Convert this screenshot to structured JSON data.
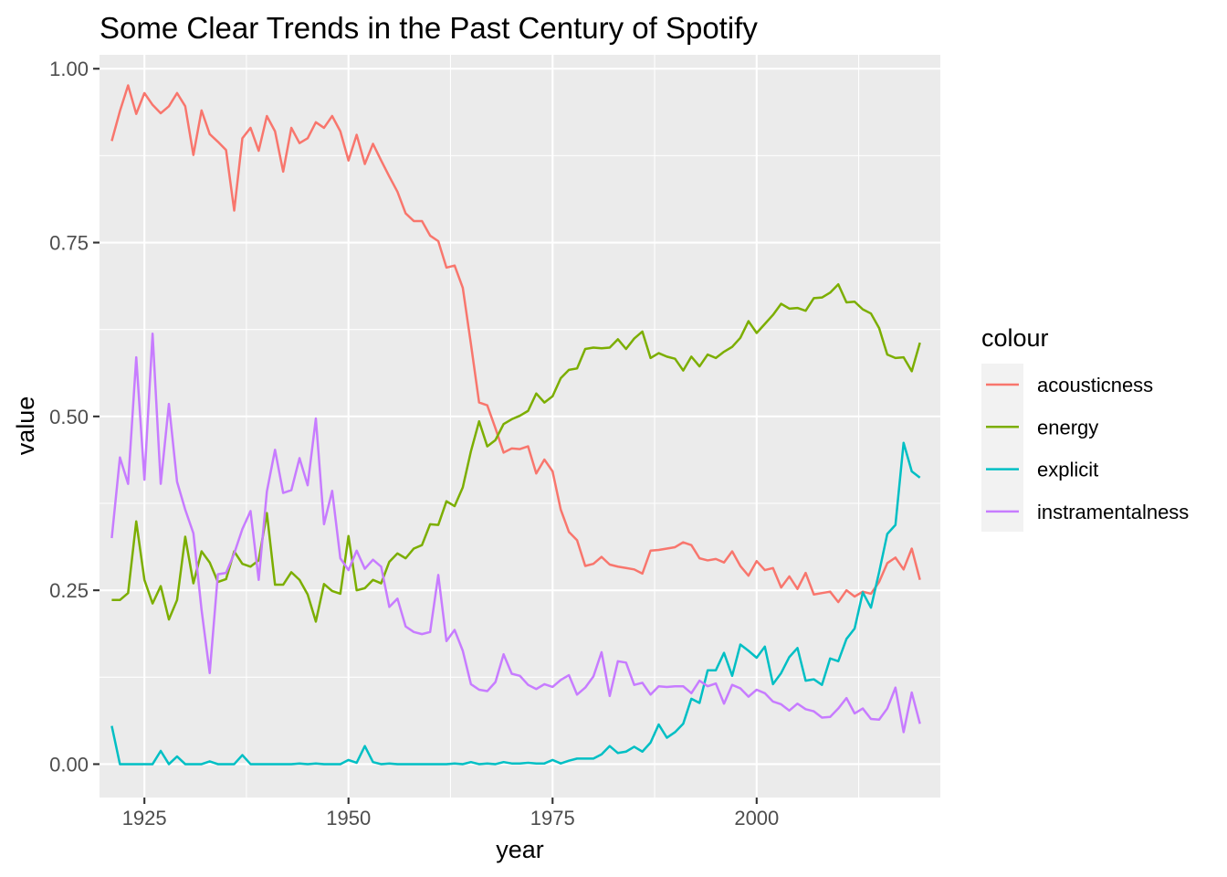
{
  "chart_data": {
    "type": "line",
    "title": "Some Clear Trends in the Past Century of Spotify",
    "xlabel": "year",
    "ylabel": "value",
    "xlim": [
      1919.5,
      2022.5
    ],
    "ylim": [
      -0.048,
      1.02
    ],
    "x_ticks": [
      1925,
      1950,
      1975,
      2000
    ],
    "x_tick_labels": [
      "1925",
      "1950",
      "1975",
      "2000"
    ],
    "y_ticks": [
      0,
      0.25,
      0.5,
      0.75,
      1.0
    ],
    "y_tick_labels": [
      "0.00",
      "0.25",
      "0.50",
      "0.75",
      "1.00"
    ],
    "grid": true,
    "legend": {
      "title": "colour",
      "position": "right",
      "entries": [
        "acousticness",
        "energy",
        "explicit",
        "instramentalness"
      ]
    },
    "x": [
      1921,
      1922,
      1923,
      1924,
      1925,
      1926,
      1927,
      1928,
      1929,
      1930,
      1931,
      1932,
      1933,
      1934,
      1935,
      1936,
      1937,
      1938,
      1939,
      1940,
      1941,
      1942,
      1943,
      1944,
      1945,
      1946,
      1947,
      1948,
      1949,
      1950,
      1951,
      1952,
      1953,
      1954,
      1955,
      1956,
      1957,
      1958,
      1959,
      1960,
      1961,
      1962,
      1963,
      1964,
      1965,
      1966,
      1967,
      1968,
      1969,
      1970,
      1971,
      1972,
      1973,
      1974,
      1975,
      1976,
      1977,
      1978,
      1979,
      1980,
      1981,
      1982,
      1983,
      1984,
      1985,
      1986,
      1987,
      1988,
      1989,
      1990,
      1991,
      1992,
      1993,
      1994,
      1995,
      1996,
      1997,
      1998,
      1999,
      2000,
      2001,
      2002,
      2003,
      2004,
      2005,
      2006,
      2007,
      2008,
      2009,
      2010,
      2011,
      2012,
      2013,
      2014,
      2015,
      2016,
      2017,
      2018,
      2019,
      2020
    ],
    "series": [
      {
        "name": "acousticness",
        "color": "#F8766D",
        "values": [
          0.896,
          0.939,
          0.976,
          0.935,
          0.965,
          0.948,
          0.936,
          0.946,
          0.965,
          0.946,
          0.876,
          0.94,
          0.906,
          0.895,
          0.883,
          0.796,
          0.9,
          0.915,
          0.882,
          0.932,
          0.91,
          0.852,
          0.915,
          0.893,
          0.9,
          0.923,
          0.915,
          0.932,
          0.91,
          0.868,
          0.905,
          0.863,
          0.892,
          0.868,
          0.845,
          0.823,
          0.792,
          0.781,
          0.781,
          0.76,
          0.752,
          0.714,
          0.717,
          0.685,
          0.604,
          0.52,
          0.516,
          0.483,
          0.448,
          0.454,
          0.453,
          0.457,
          0.418,
          0.438,
          0.421,
          0.366,
          0.334,
          0.322,
          0.285,
          0.288,
          0.298,
          0.287,
          0.284,
          0.282,
          0.28,
          0.274,
          0.307,
          0.308,
          0.31,
          0.312,
          0.319,
          0.315,
          0.296,
          0.293,
          0.295,
          0.29,
          0.306,
          0.285,
          0.271,
          0.292,
          0.279,
          0.282,
          0.254,
          0.27,
          0.252,
          0.275,
          0.244,
          0.246,
          0.248,
          0.233,
          0.25,
          0.241,
          0.248,
          0.245,
          0.262,
          0.289,
          0.297,
          0.28,
          0.31,
          0.265
        ]
      },
      {
        "name": "energy",
        "color": "#7CAE00",
        "values": [
          0.236,
          0.236,
          0.246,
          0.349,
          0.265,
          0.231,
          0.256,
          0.208,
          0.236,
          0.327,
          0.26,
          0.306,
          0.29,
          0.262,
          0.266,
          0.306,
          0.288,
          0.284,
          0.293,
          0.361,
          0.258,
          0.258,
          0.276,
          0.265,
          0.244,
          0.205,
          0.259,
          0.249,
          0.245,
          0.328,
          0.25,
          0.253,
          0.265,
          0.26,
          0.291,
          0.303,
          0.296,
          0.31,
          0.315,
          0.345,
          0.344,
          0.378,
          0.371,
          0.398,
          0.45,
          0.493,
          0.457,
          0.466,
          0.489,
          0.496,
          0.501,
          0.508,
          0.533,
          0.52,
          0.529,
          0.555,
          0.567,
          0.569,
          0.597,
          0.599,
          0.598,
          0.599,
          0.611,
          0.597,
          0.612,
          0.622,
          0.584,
          0.591,
          0.586,
          0.583,
          0.566,
          0.586,
          0.572,
          0.589,
          0.584,
          0.593,
          0.6,
          0.613,
          0.637,
          0.62,
          0.633,
          0.646,
          0.662,
          0.655,
          0.656,
          0.652,
          0.67,
          0.671,
          0.678,
          0.69,
          0.664,
          0.665,
          0.654,
          0.648,
          0.627,
          0.589,
          0.584,
          0.585,
          0.565,
          0.606
        ]
      },
      {
        "name": "explicit",
        "color": "#00BFC4",
        "values": [
          0.055,
          0.0,
          0.0,
          0.0,
          0.0,
          0.0,
          0.019,
          0.0,
          0.011,
          0.0,
          0.0,
          0.0,
          0.004,
          0.0,
          0.0,
          0.0,
          0.013,
          0.0,
          0.0,
          0.0,
          0.0,
          0.0,
          0.0,
          0.001,
          0.0,
          0.001,
          0.0,
          0.0,
          0.0,
          0.006,
          0.002,
          0.026,
          0.003,
          0.0,
          0.001,
          0.0,
          0.0,
          0.0,
          0.0,
          0.0,
          0.0,
          0.0,
          0.001,
          0.0,
          0.003,
          0.0,
          0.001,
          0.0,
          0.003,
          0.001,
          0.001,
          0.002,
          0.001,
          0.001,
          0.006,
          0.001,
          0.005,
          0.008,
          0.008,
          0.008,
          0.014,
          0.026,
          0.016,
          0.018,
          0.025,
          0.018,
          0.031,
          0.057,
          0.038,
          0.046,
          0.058,
          0.094,
          0.088,
          0.135,
          0.135,
          0.16,
          0.127,
          0.172,
          0.163,
          0.153,
          0.169,
          0.115,
          0.131,
          0.154,
          0.167,
          0.12,
          0.122,
          0.114,
          0.152,
          0.148,
          0.18,
          0.195,
          0.247,
          0.225,
          0.276,
          0.331,
          0.344,
          0.462,
          0.421,
          0.412
        ]
      },
      {
        "name": "instramentalness",
        "color": "#C77CFF",
        "values": [
          0.325,
          0.441,
          0.403,
          0.585,
          0.409,
          0.619,
          0.403,
          0.518,
          0.406,
          0.366,
          0.332,
          0.222,
          0.131,
          0.273,
          0.275,
          0.303,
          0.338,
          0.364,
          0.265,
          0.392,
          0.452,
          0.39,
          0.394,
          0.44,
          0.401,
          0.497,
          0.345,
          0.393,
          0.296,
          0.279,
          0.307,
          0.281,
          0.294,
          0.284,
          0.226,
          0.238,
          0.198,
          0.19,
          0.187,
          0.19,
          0.272,
          0.177,
          0.193,
          0.163,
          0.115,
          0.107,
          0.105,
          0.118,
          0.158,
          0.13,
          0.127,
          0.114,
          0.108,
          0.115,
          0.111,
          0.121,
          0.128,
          0.1,
          0.11,
          0.126,
          0.161,
          0.098,
          0.148,
          0.146,
          0.114,
          0.117,
          0.1,
          0.112,
          0.111,
          0.112,
          0.112,
          0.102,
          0.12,
          0.112,
          0.116,
          0.087,
          0.114,
          0.109,
          0.097,
          0.107,
          0.102,
          0.09,
          0.086,
          0.077,
          0.087,
          0.079,
          0.076,
          0.067,
          0.068,
          0.08,
          0.095,
          0.073,
          0.08,
          0.065,
          0.064,
          0.08,
          0.11,
          0.046,
          0.103,
          0.058
        ]
      }
    ]
  }
}
